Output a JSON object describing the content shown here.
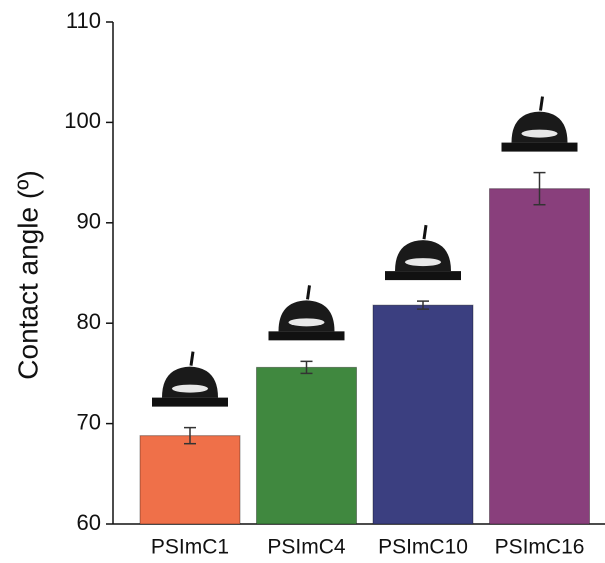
{
  "chart_data": {
    "type": "bar",
    "y_label": "Contact angle (º)",
    "categories": [
      "PSImC1",
      "PSImC4",
      "PSImC10",
      "PSImC16"
    ],
    "values": [
      68.8,
      75.6,
      81.8,
      93.4
    ],
    "errors": [
      0.8,
      0.6,
      0.4,
      1.6
    ],
    "colors": [
      "#ef7049",
      "#40883f",
      "#3b3f80",
      "#893f7c"
    ],
    "ylim": [
      60,
      110
    ],
    "yticks": [
      60,
      70,
      80,
      90,
      100,
      110
    ]
  }
}
